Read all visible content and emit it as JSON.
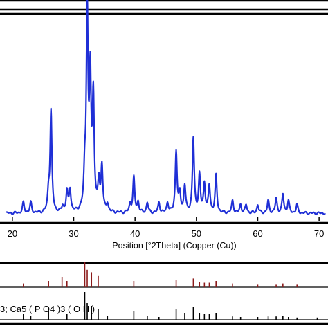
{
  "chart_data": {
    "type": "line",
    "xlabel": "Position [°2Theta] (Copper (Cu))",
    "xlim": [
      19,
      71
    ],
    "x_ticks": [
      20,
      30,
      40,
      50,
      60,
      70
    ],
    "x_tick_labels": [
      "20",
      "30",
      "40",
      "50",
      "60",
      "70"
    ],
    "ylim": [
      0,
      100
    ],
    "grid": false,
    "series": [
      {
        "color": "#1f2fd6",
        "baseline": 4,
        "peaks": [
          [
            21.8,
            5
          ],
          [
            23.0,
            5
          ],
          [
            25.9,
            9
          ],
          [
            26.3,
            49
          ],
          [
            28.2,
            3
          ],
          [
            28.9,
            10
          ],
          [
            29.4,
            11
          ],
          [
            31.8,
            16
          ],
          [
            32.2,
            97
          ],
          [
            32.7,
            62
          ],
          [
            33.2,
            54
          ],
          [
            34.1,
            14
          ],
          [
            34.6,
            22
          ],
          [
            35.5,
            4
          ],
          [
            39.2,
            4
          ],
          [
            39.8,
            17
          ],
          [
            40.5,
            5
          ],
          [
            42.0,
            5
          ],
          [
            43.9,
            5
          ],
          [
            45.3,
            5
          ],
          [
            46.7,
            30
          ],
          [
            47.3,
            9
          ],
          [
            48.1,
            13
          ],
          [
            49.5,
            36
          ],
          [
            50.5,
            18
          ],
          [
            51.3,
            14
          ],
          [
            52.1,
            13
          ],
          [
            53.2,
            18
          ],
          [
            55.9,
            6
          ],
          [
            57.2,
            4
          ],
          [
            58.1,
            4
          ],
          [
            60.0,
            4
          ],
          [
            61.7,
            6
          ],
          [
            63.0,
            7
          ],
          [
            64.1,
            9
          ],
          [
            65.0,
            6
          ],
          [
            66.4,
            4
          ]
        ]
      }
    ],
    "reference_patterns": [
      {
        "name": "",
        "color": "#8b1a1a",
        "lines": [
          [
            21.8,
            15
          ],
          [
            25.9,
            25
          ],
          [
            28.1,
            40
          ],
          [
            28.9,
            25
          ],
          [
            31.8,
            100
          ],
          [
            32.2,
            70
          ],
          [
            32.9,
            60
          ],
          [
            34.0,
            45
          ],
          [
            39.8,
            25
          ],
          [
            46.7,
            30
          ],
          [
            49.5,
            35
          ],
          [
            50.5,
            20
          ],
          [
            51.3,
            18
          ],
          [
            52.1,
            18
          ],
          [
            53.2,
            25
          ],
          [
            55.9,
            15
          ],
          [
            60.0,
            10
          ],
          [
            63.0,
            10
          ],
          [
            64.1,
            15
          ],
          [
            66.4,
            10
          ]
        ]
      },
      {
        "name": "3; Ca5 ( P O4 )3 ( O H )",
        "color": "#000000",
        "lines": [
          [
            21.8,
            20
          ],
          [
            23.0,
            15
          ],
          [
            25.9,
            30
          ],
          [
            28.9,
            20
          ],
          [
            31.8,
            100
          ],
          [
            32.2,
            60
          ],
          [
            32.9,
            50
          ],
          [
            34.0,
            40
          ],
          [
            35.5,
            15
          ],
          [
            39.8,
            30
          ],
          [
            42.0,
            15
          ],
          [
            43.9,
            10
          ],
          [
            46.7,
            40
          ],
          [
            48.1,
            25
          ],
          [
            49.5,
            45
          ],
          [
            50.5,
            25
          ],
          [
            51.3,
            20
          ],
          [
            52.1,
            20
          ],
          [
            53.2,
            25
          ],
          [
            55.9,
            12
          ],
          [
            57.2,
            10
          ],
          [
            60.0,
            10
          ],
          [
            61.7,
            12
          ],
          [
            63.0,
            12
          ],
          [
            64.1,
            15
          ],
          [
            65.0,
            10
          ],
          [
            66.4,
            8
          ],
          [
            69.7,
            8
          ]
        ]
      }
    ]
  }
}
